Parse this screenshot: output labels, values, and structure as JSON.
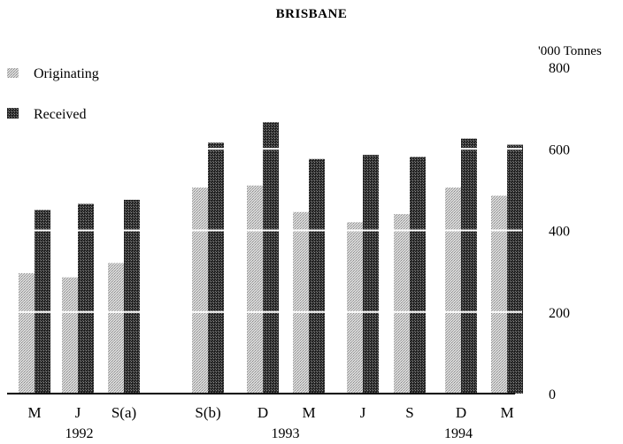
{
  "chart_data": {
    "type": "bar",
    "title": "BRISBANE",
    "y_unit": "'000 Tonnes",
    "ylim": [
      0,
      800
    ],
    "yticks": [
      "0",
      "200",
      "400",
      "600",
      "800"
    ],
    "ytick_values": [
      0,
      200,
      400,
      600,
      800
    ],
    "gridlines": true,
    "legend_position": "top-left",
    "categories": [
      "M",
      "J",
      "S(a)",
      "S(b)",
      "D",
      "M",
      "J",
      "S",
      "D",
      "M"
    ],
    "year_labels": [
      {
        "label": "1992",
        "start": 0,
        "end": 2
      },
      {
        "label": "1993",
        "start": 3,
        "end": 6
      },
      {
        "label": "1994",
        "start": 7,
        "end": 9
      }
    ],
    "series": [
      {
        "name": "Originating",
        "color": "#c4c4c4",
        "values": [
          295,
          285,
          320,
          505,
          510,
          445,
          420,
          440,
          505,
          485
        ]
      },
      {
        "name": "Received",
        "color": "#2a2a2a",
        "values": [
          450,
          465,
          475,
          615,
          665,
          575,
          585,
          580,
          625,
          610
        ]
      }
    ]
  }
}
